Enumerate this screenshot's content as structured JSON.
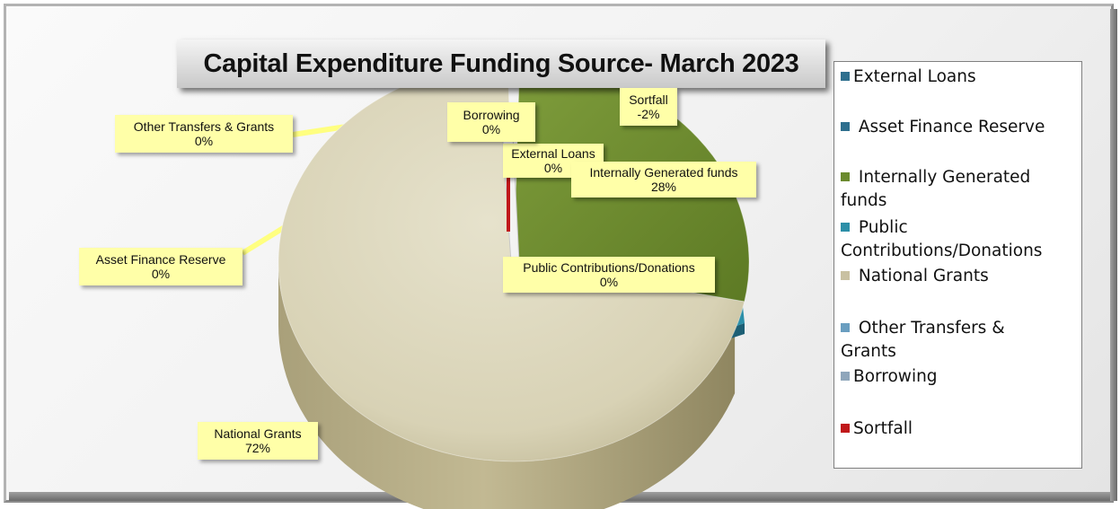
{
  "chart_data": {
    "type": "pie",
    "title": "Capital Expenditure Funding Source- March 2023",
    "slices": [
      {
        "name": "External Loans",
        "value": 0,
        "label": "External Loans",
        "pct_label": "0%",
        "color": "#2e6f8e"
      },
      {
        "name": "Asset Finance Reserve",
        "value": 0,
        "label": "Asset Finance Reserve",
        "pct_label": "0%",
        "color": "#2e6f8e"
      },
      {
        "name": "Internally Generated funds",
        "value": 28,
        "label": "Internally Generated funds",
        "pct_label": "28%",
        "color": "#6b8a2e"
      },
      {
        "name": "Public Contributions/Donations",
        "value": 0,
        "label": "Public Contributions/Donations",
        "pct_label": "0%",
        "color": "#2c8fa8"
      },
      {
        "name": "National Grants",
        "value": 72,
        "label": "National Grants",
        "pct_label": "72%",
        "color": "#ddd8bd"
      },
      {
        "name": "Other Transfers & Grants",
        "value": 0,
        "label": "Other Transfers & Grants",
        "pct_label": "0%",
        "color": "#6a9ec0"
      },
      {
        "name": "Borrowing",
        "value": 0,
        "label": "Borrowing",
        "pct_label": "0%",
        "color": "#9db3c8"
      },
      {
        "name": "Sortfall",
        "value": -2,
        "label": "Sortfall",
        "pct_label": "-2%",
        "color": "#c0181a"
      }
    ],
    "legend_position": "right",
    "legend": [
      {
        "lines": [
          "External Loans"
        ],
        "color": "#2e6f8e"
      },
      {
        "lines": [
          " Asset Finance Reserve"
        ],
        "color": "#2e6f8e"
      },
      {
        "lines": [
          " Internally Generated",
          "funds"
        ],
        "color": "#6b8a2e"
      },
      {
        "lines": [
          " Public",
          "Contributions/Donations"
        ],
        "color": "#2c8fa8"
      },
      {
        "lines": [
          " National Grants"
        ],
        "color": "#c9c1a2"
      },
      {
        "lines": [
          " Other Transfers &",
          "Grants"
        ],
        "color": "#6a9ec0"
      },
      {
        "lines": [
          "Borrowing"
        ],
        "color": "#8fa6bb"
      },
      {
        "lines": [
          "Sortfall"
        ],
        "color": "#c0181a"
      }
    ]
  }
}
